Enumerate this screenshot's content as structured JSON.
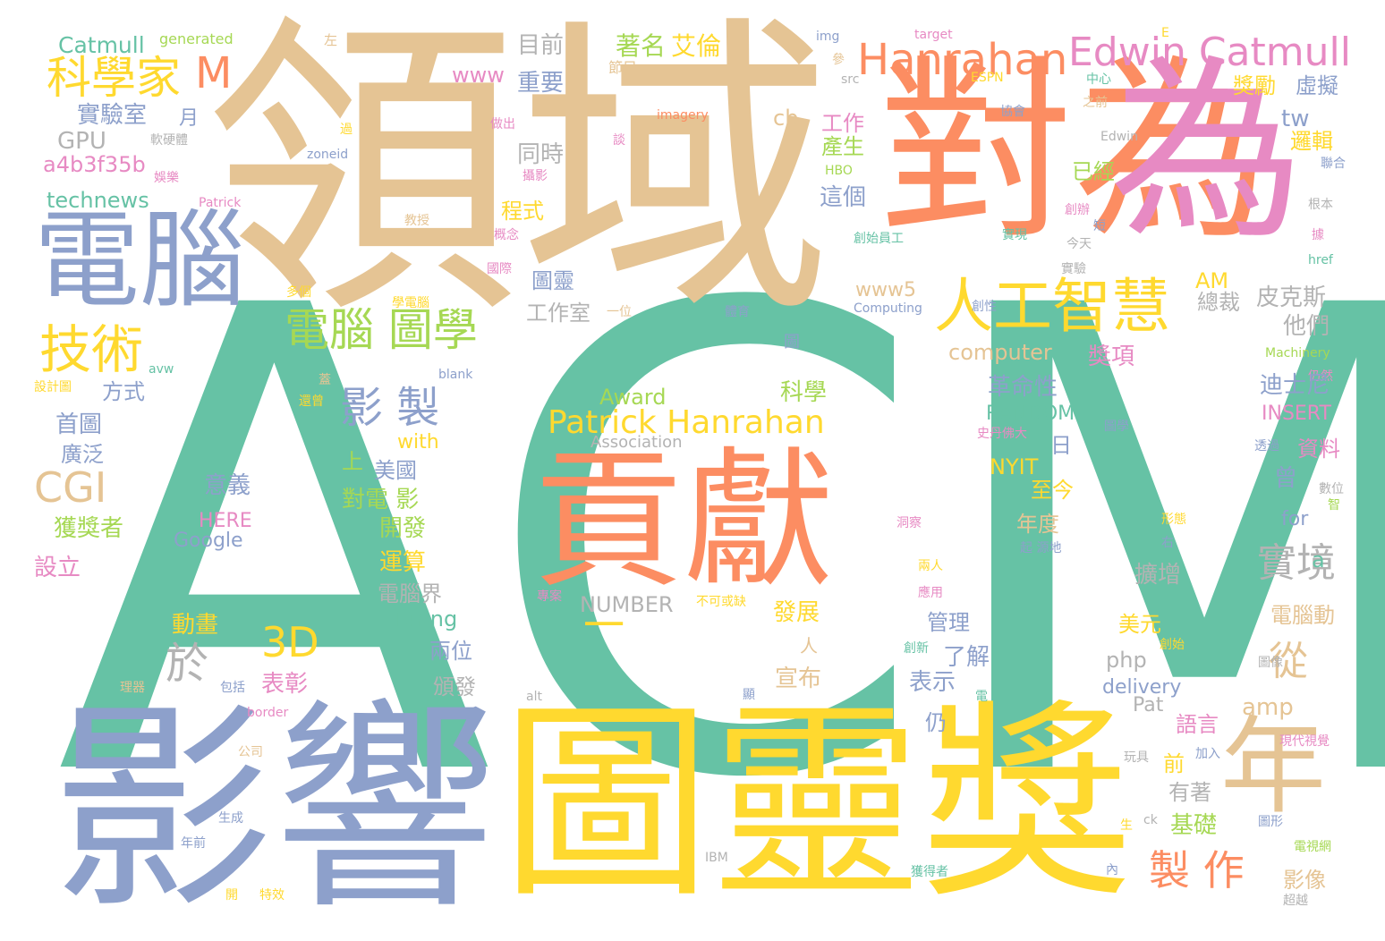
{
  "palette": {
    "green": "#66c2a5",
    "orange": "#fc8d62",
    "blue": "#8da0cb",
    "pink": "#e78ac3",
    "lime": "#a6d854",
    "yellow": "#ffd92f",
    "tan": "#e5c494",
    "grey": "#b3b3b3"
  },
  "words": [
    {
      "text": "ACM",
      "color": "green"
    },
    {
      "text": "領域",
      "color": "tan"
    },
    {
      "text": "對為",
      "color": "orange"
    },
    {
      "text": "為",
      "color": "pink"
    },
    {
      "text": "影響",
      "color": "blue"
    },
    {
      "text": "圖靈獎",
      "color": "yellow"
    },
    {
      "text": "貢獻",
      "color": "orange"
    },
    {
      "text": "電腦",
      "color": "blue"
    },
    {
      "text": "年",
      "color": "tan"
    },
    {
      "text": "人工智慧",
      "color": "yellow"
    },
    {
      "text": "Edwin Catmull",
      "color": "pink"
    },
    {
      "text": "Hanrahan",
      "color": "orange"
    },
    {
      "text": "科學家",
      "color": "yellow"
    },
    {
      "text": "M",
      "color": "orange"
    },
    {
      "text": "技術",
      "color": "yellow"
    },
    {
      "text": "電腦 圖學",
      "color": "lime"
    },
    {
      "text": "影 製",
      "color": "blue"
    },
    {
      "text": "於",
      "color": "grey"
    },
    {
      "text": "3D",
      "color": "yellow"
    },
    {
      "text": "CGI",
      "color": "tan"
    },
    {
      "text": "Patrick Hanrahan",
      "color": "yellow"
    },
    {
      "text": "實境",
      "color": "grey"
    },
    {
      "text": "製 作",
      "color": "orange"
    },
    {
      "text": "從",
      "color": "tan"
    },
    {
      "text": "一",
      "color": "yellow"
    },
    {
      "text": "Catmull",
      "color": "green"
    },
    {
      "text": "generated",
      "color": "lime"
    },
    {
      "text": "左",
      "color": "tan"
    },
    {
      "text": "目前",
      "color": "grey"
    },
    {
      "text": "著名",
      "color": "lime"
    },
    {
      "text": "艾倫",
      "color": "yellow"
    },
    {
      "text": "img",
      "color": "blue"
    },
    {
      "text": "target",
      "color": "pink"
    },
    {
      "text": "E",
      "color": "yellow"
    },
    {
      "text": "www",
      "color": "pink"
    },
    {
      "text": "重要",
      "color": "blue"
    },
    {
      "text": "節目",
      "color": "tan"
    },
    {
      "text": "參",
      "color": "tan"
    },
    {
      "text": "src",
      "color": "grey"
    },
    {
      "text": "ESPN",
      "color": "yellow"
    },
    {
      "text": "中心",
      "color": "green"
    },
    {
      "text": "之前",
      "color": "tan"
    },
    {
      "text": "獎勵",
      "color": "yellow"
    },
    {
      "text": "虛擬",
      "color": "blue"
    },
    {
      "text": "實驗室",
      "color": "blue"
    },
    {
      "text": "月",
      "color": "blue"
    },
    {
      "text": "imagery",
      "color": "orange"
    },
    {
      "text": "協會",
      "color": "blue"
    },
    {
      "text": "GPU",
      "color": "grey"
    },
    {
      "text": "軟硬體",
      "color": "grey"
    },
    {
      "text": "過",
      "color": "yellow"
    },
    {
      "text": "做出",
      "color": "pink"
    },
    {
      "text": "同時",
      "color": "grey"
    },
    {
      "text": "cb",
      "color": "tan"
    },
    {
      "text": "工作",
      "color": "pink"
    },
    {
      "text": "產生",
      "color": "lime"
    },
    {
      "text": "Edwin",
      "color": "grey"
    },
    {
      "text": "tw",
      "color": "blue"
    },
    {
      "text": "邏輯",
      "color": "yellow"
    },
    {
      "text": "聯合",
      "color": "blue"
    },
    {
      "text": "a4b3f35b",
      "color": "pink"
    },
    {
      "text": "娛樂",
      "color": "pink"
    },
    {
      "text": "zoneid",
      "color": "blue"
    },
    {
      "text": "攝影",
      "color": "pink"
    },
    {
      "text": "談",
      "color": "pink"
    },
    {
      "text": "HBO",
      "color": "lime"
    },
    {
      "text": "已經",
      "color": "lime"
    },
    {
      "text": "technews",
      "color": "green"
    },
    {
      "text": "Patrick",
      "color": "pink"
    },
    {
      "text": "程式",
      "color": "yellow"
    },
    {
      "text": "這個",
      "color": "blue"
    },
    {
      "text": "創辦",
      "color": "pink"
    },
    {
      "text": "根本",
      "color": "grey"
    },
    {
      "text": "教授",
      "color": "tan"
    },
    {
      "text": "概念",
      "color": "pink"
    },
    {
      "text": "創始員工",
      "color": "green"
    },
    {
      "text": "實現",
      "color": "green"
    },
    {
      "text": "今天",
      "color": "grey"
    },
    {
      "text": "據",
      "color": "pink"
    },
    {
      "text": "國際",
      "color": "pink"
    },
    {
      "text": "圖靈",
      "color": "blue"
    },
    {
      "text": "href",
      "color": "green"
    },
    {
      "text": "AM",
      "color": "yellow"
    },
    {
      "text": "實驗",
      "color": "grey"
    },
    {
      "text": "www5",
      "color": "tan"
    },
    {
      "text": "多個",
      "color": "yellow"
    },
    {
      "text": "學電腦",
      "color": "yellow"
    },
    {
      "text": "工作室",
      "color": "grey"
    },
    {
      "text": "一位",
      "color": "tan"
    },
    {
      "text": "體育",
      "color": "blue"
    },
    {
      "text": "Computing",
      "color": "blue"
    },
    {
      "text": "創性",
      "color": "blue"
    },
    {
      "text": "總裁",
      "color": "grey"
    },
    {
      "text": "皮克斯",
      "color": "grey"
    },
    {
      "text": "他們",
      "color": "grey"
    },
    {
      "text": "computer",
      "color": "tan"
    },
    {
      "text": "圖",
      "color": "blue"
    },
    {
      "text": "獎項",
      "color": "pink"
    },
    {
      "text": "Machinery",
      "color": "lime"
    },
    {
      "text": "仍然",
      "color": "pink"
    },
    {
      "text": "avw",
      "color": "green"
    },
    {
      "text": "設計圖",
      "color": "yellow"
    },
    {
      "text": "blank",
      "color": "blue"
    },
    {
      "text": "蓋",
      "color": "tan"
    },
    {
      "text": "還曾",
      "color": "yellow"
    },
    {
      "text": "方式",
      "color": "blue"
    },
    {
      "text": "Award",
      "color": "lime"
    },
    {
      "text": "科學",
      "color": "lime"
    },
    {
      "text": "革命性",
      "color": "blue"
    },
    {
      "text": "迪士尼",
      "color": "blue"
    },
    {
      "text": "RANDOM",
      "color": "green"
    },
    {
      "text": "INSERT",
      "color": "pink"
    },
    {
      "text": "首圖",
      "color": "blue"
    },
    {
      "text": "with",
      "color": "yellow"
    },
    {
      "text": "Association",
      "color": "grey"
    },
    {
      "text": "史丹佛大",
      "color": "pink"
    },
    {
      "text": "圖學",
      "color": "blue"
    },
    {
      "text": "透過",
      "color": "blue"
    },
    {
      "text": "資料",
      "color": "pink"
    },
    {
      "text": "日",
      "color": "blue"
    },
    {
      "text": "廣泛",
      "color": "blue"
    },
    {
      "text": "上",
      "color": "lime"
    },
    {
      "text": "美國",
      "color": "blue"
    },
    {
      "text": "NYIT",
      "color": "yellow"
    },
    {
      "text": "曾",
      "color": "blue"
    },
    {
      "text": "意義",
      "color": "blue"
    },
    {
      "text": "對電 影",
      "color": "lime"
    },
    {
      "text": "至今",
      "color": "yellow"
    },
    {
      "text": "數位",
      "color": "grey"
    },
    {
      "text": "智",
      "color": "lime"
    },
    {
      "text": "獲獎者",
      "color": "lime"
    },
    {
      "text": "HERE",
      "color": "pink"
    },
    {
      "text": "Google",
      "color": "blue"
    },
    {
      "text": "開發",
      "color": "lime"
    },
    {
      "text": "年度",
      "color": "tan"
    },
    {
      "text": "洞察",
      "color": "pink"
    },
    {
      "text": "形態",
      "color": "yellow"
    },
    {
      "text": "for",
      "color": "blue"
    },
    {
      "text": "設立",
      "color": "pink"
    },
    {
      "text": "運算",
      "color": "yellow"
    },
    {
      "text": "起 源地",
      "color": "blue"
    },
    {
      "text": "右",
      "color": "blue"
    },
    {
      "text": "擴增",
      "color": "grey"
    },
    {
      "text": "兩人",
      "color": "yellow"
    },
    {
      "text": "a",
      "color": "green"
    },
    {
      "text": "電腦界",
      "color": "grey"
    },
    {
      "text": "NUMBER",
      "color": "grey"
    },
    {
      "text": "專案",
      "color": "pink"
    },
    {
      "text": "不可或缺",
      "color": "yellow"
    },
    {
      "text": "應用",
      "color": "pink"
    },
    {
      "text": "Turing",
      "color": "green"
    },
    {
      "text": "動畫",
      "color": "yellow"
    },
    {
      "text": "發展",
      "color": "yellow"
    },
    {
      "text": "管理",
      "color": "blue"
    },
    {
      "text": "美元",
      "color": "yellow"
    },
    {
      "text": "電腦動",
      "color": "tan"
    },
    {
      "text": "兩位",
      "color": "blue"
    },
    {
      "text": "人",
      "color": "tan"
    },
    {
      "text": "了解",
      "color": "blue"
    },
    {
      "text": "創新",
      "color": "green"
    },
    {
      "text": "創始",
      "color": "yellow"
    },
    {
      "text": "php",
      "color": "grey"
    },
    {
      "text": "表彰",
      "color": "pink"
    },
    {
      "text": "宣布",
      "color": "tan"
    },
    {
      "text": "表示",
      "color": "blue"
    },
    {
      "text": "delivery",
      "color": "blue"
    },
    {
      "text": "圖像",
      "color": "grey"
    },
    {
      "text": "理器",
      "color": "tan"
    },
    {
      "text": "包括",
      "color": "blue"
    },
    {
      "text": "頒發",
      "color": "grey"
    },
    {
      "text": "alt",
      "color": "grey"
    },
    {
      "text": "顯",
      "color": "blue"
    },
    {
      "text": "電",
      "color": "green"
    },
    {
      "text": "Pat",
      "color": "grey"
    },
    {
      "text": "amp",
      "color": "tan"
    },
    {
      "text": "border",
      "color": "pink"
    },
    {
      "text": "仍",
      "color": "blue"
    },
    {
      "text": "語言",
      "color": "pink"
    },
    {
      "text": "現代視覺",
      "color": "pink"
    },
    {
      "text": "公司",
      "color": "tan"
    },
    {
      "text": "玩具",
      "color": "grey"
    },
    {
      "text": "加入",
      "color": "blue"
    },
    {
      "text": "前",
      "color": "yellow"
    },
    {
      "text": "有著",
      "color": "grey"
    },
    {
      "text": "生成",
      "color": "blue"
    },
    {
      "text": "生",
      "color": "yellow"
    },
    {
      "text": "ck",
      "color": "grey"
    },
    {
      "text": "圖形",
      "color": "blue"
    },
    {
      "text": "基礎",
      "color": "lime"
    },
    {
      "text": "年前",
      "color": "blue"
    },
    {
      "text": "IBM",
      "color": "grey"
    },
    {
      "text": "電視網",
      "color": "lime"
    },
    {
      "text": "影像",
      "color": "tan"
    },
    {
      "text": "內",
      "color": "blue"
    },
    {
      "text": "開",
      "color": "yellow"
    },
    {
      "text": "特效",
      "color": "yellow"
    },
    {
      "text": "獲得者",
      "color": "green"
    },
    {
      "text": "超越",
      "color": "grey"
    },
    {
      "text": "短",
      "color": "blue"
    }
  ]
}
